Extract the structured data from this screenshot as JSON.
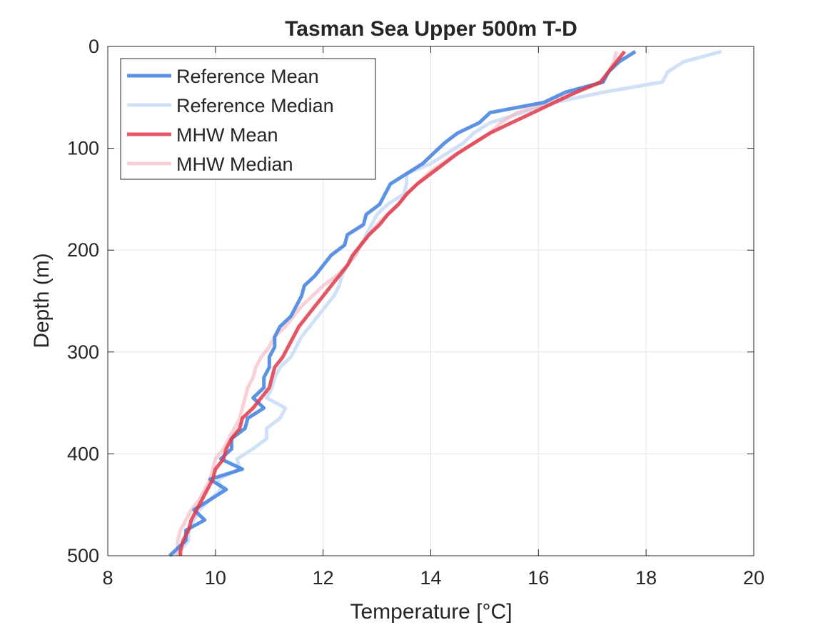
{
  "chart_data": {
    "type": "line",
    "title": "Tasman Sea Upper 500m T-D",
    "xlabel": "Temperature [°C]",
    "ylabel": "Depth (m)",
    "xlim": [
      8,
      20
    ],
    "ylim": [
      0,
      500
    ],
    "y_reversed": true,
    "grid": true,
    "legend_position": "top-left",
    "x_ticks": [
      "8",
      "10",
      "12",
      "14",
      "16",
      "18",
      "20"
    ],
    "y_ticks": [
      "0",
      "100",
      "200",
      "300",
      "400",
      "500"
    ],
    "series": [
      {
        "name": "Reference Mean",
        "color": "#4a86e0",
        "opacity": 0.9,
        "points": [
          [
            17.8,
            5
          ],
          [
            17.5,
            15
          ],
          [
            17.3,
            25
          ],
          [
            17.2,
            35
          ],
          [
            16.5,
            45
          ],
          [
            16.1,
            55
          ],
          [
            15.1,
            65
          ],
          [
            14.9,
            75
          ],
          [
            14.5,
            85
          ],
          [
            14.25,
            95
          ],
          [
            14.05,
            105
          ],
          [
            13.85,
            115
          ],
          [
            13.55,
            125
          ],
          [
            13.25,
            135
          ],
          [
            13.05,
            155
          ],
          [
            12.8,
            165
          ],
          [
            12.75,
            175
          ],
          [
            12.45,
            185
          ],
          [
            12.4,
            195
          ],
          [
            12.15,
            205
          ],
          [
            12.0,
            215
          ],
          [
            11.85,
            225
          ],
          [
            11.65,
            235
          ],
          [
            11.6,
            245
          ],
          [
            11.5,
            255
          ],
          [
            11.4,
            265
          ],
          [
            11.2,
            275
          ],
          [
            11.1,
            285
          ],
          [
            11.1,
            295
          ],
          [
            11.0,
            305
          ],
          [
            11.0,
            315
          ],
          [
            10.9,
            325
          ],
          [
            10.9,
            335
          ],
          [
            10.7,
            345
          ],
          [
            10.9,
            355
          ],
          [
            10.6,
            365
          ],
          [
            10.55,
            375
          ],
          [
            10.3,
            385
          ],
          [
            10.3,
            395
          ],
          [
            10.1,
            405
          ],
          [
            10.5,
            415
          ],
          [
            9.9,
            425
          ],
          [
            10.2,
            435
          ],
          [
            9.9,
            445
          ],
          [
            9.6,
            455
          ],
          [
            9.8,
            465
          ],
          [
            9.45,
            475
          ],
          [
            9.45,
            485
          ],
          [
            9.25,
            495
          ],
          [
            9.15,
            500
          ]
        ]
      },
      {
        "name": "Reference Median",
        "color": "#c8dcf6",
        "opacity": 0.85,
        "points": [
          [
            19.4,
            5
          ],
          [
            18.7,
            15
          ],
          [
            18.4,
            25
          ],
          [
            18.3,
            35
          ],
          [
            17.2,
            45
          ],
          [
            16.3,
            55
          ],
          [
            15.7,
            65
          ],
          [
            15.1,
            75
          ],
          [
            14.8,
            85
          ],
          [
            14.6,
            95
          ],
          [
            14.3,
            105
          ],
          [
            14.0,
            115
          ],
          [
            13.55,
            125
          ],
          [
            13.55,
            135
          ],
          [
            13.5,
            145
          ],
          [
            13.2,
            155
          ],
          [
            13.0,
            165
          ],
          [
            12.9,
            175
          ],
          [
            12.8,
            185
          ],
          [
            12.7,
            195
          ],
          [
            12.6,
            205
          ],
          [
            12.45,
            215
          ],
          [
            12.35,
            225
          ],
          [
            12.3,
            235
          ],
          [
            12.2,
            245
          ],
          [
            12.05,
            255
          ],
          [
            11.9,
            265
          ],
          [
            11.75,
            275
          ],
          [
            11.6,
            285
          ],
          [
            11.5,
            295
          ],
          [
            11.4,
            305
          ],
          [
            11.2,
            315
          ],
          [
            11.1,
            325
          ],
          [
            11.05,
            335
          ],
          [
            10.95,
            345
          ],
          [
            11.3,
            355
          ],
          [
            11.2,
            365
          ],
          [
            10.95,
            375
          ],
          [
            10.95,
            385
          ],
          [
            10.7,
            395
          ],
          [
            10.4,
            405
          ],
          [
            10.45,
            415
          ],
          [
            10.05,
            425
          ],
          [
            10.1,
            435
          ],
          [
            9.9,
            445
          ],
          [
            9.7,
            455
          ],
          [
            9.6,
            465
          ],
          [
            9.5,
            475
          ],
          [
            9.5,
            485
          ],
          [
            9.35,
            495
          ],
          [
            9.3,
            500
          ]
        ]
      },
      {
        "name": "MHW Mean",
        "color": "#e13a4a",
        "opacity": 0.85,
        "points": [
          [
            17.6,
            5
          ],
          [
            17.45,
            15
          ],
          [
            17.3,
            25
          ],
          [
            17.15,
            35
          ],
          [
            16.7,
            45
          ],
          [
            16.3,
            55
          ],
          [
            15.9,
            65
          ],
          [
            15.5,
            75
          ],
          [
            15.1,
            85
          ],
          [
            14.8,
            95
          ],
          [
            14.5,
            105
          ],
          [
            14.25,
            115
          ],
          [
            14.0,
            125
          ],
          [
            13.75,
            135
          ],
          [
            13.55,
            145
          ],
          [
            13.4,
            155
          ],
          [
            13.2,
            165
          ],
          [
            13.05,
            175
          ],
          [
            12.85,
            185
          ],
          [
            12.7,
            195
          ],
          [
            12.55,
            205
          ],
          [
            12.45,
            215
          ],
          [
            12.3,
            225
          ],
          [
            12.15,
            235
          ],
          [
            12.0,
            245
          ],
          [
            11.85,
            255
          ],
          [
            11.7,
            265
          ],
          [
            11.55,
            275
          ],
          [
            11.45,
            285
          ],
          [
            11.35,
            295
          ],
          [
            11.25,
            305
          ],
          [
            11.1,
            315
          ],
          [
            11.05,
            325
          ],
          [
            11.0,
            335
          ],
          [
            10.85,
            345
          ],
          [
            10.7,
            355
          ],
          [
            10.5,
            365
          ],
          [
            10.45,
            375
          ],
          [
            10.3,
            385
          ],
          [
            10.2,
            395
          ],
          [
            10.15,
            405
          ],
          [
            10.0,
            415
          ],
          [
            9.95,
            425
          ],
          [
            9.85,
            435
          ],
          [
            9.75,
            445
          ],
          [
            9.65,
            455
          ],
          [
            9.55,
            465
          ],
          [
            9.5,
            475
          ],
          [
            9.4,
            485
          ],
          [
            9.35,
            495
          ],
          [
            9.35,
            500
          ]
        ]
      },
      {
        "name": "MHW Median",
        "color": "#f2b3bb",
        "opacity": 0.6,
        "points": [
          [
            17.45,
            5
          ],
          [
            17.4,
            15
          ],
          [
            17.3,
            25
          ],
          [
            17.2,
            35
          ],
          [
            16.7,
            45
          ],
          [
            16.2,
            55
          ],
          [
            15.6,
            65
          ],
          [
            15.3,
            75
          ],
          [
            15.1,
            85
          ],
          [
            14.8,
            95
          ],
          [
            14.5,
            105
          ],
          [
            14.2,
            115
          ],
          [
            13.95,
            125
          ],
          [
            13.75,
            135
          ],
          [
            13.55,
            145
          ],
          [
            13.4,
            155
          ],
          [
            13.2,
            165
          ],
          [
            13.0,
            175
          ],
          [
            12.85,
            185
          ],
          [
            12.7,
            195
          ],
          [
            12.6,
            205
          ],
          [
            12.45,
            215
          ],
          [
            12.25,
            225
          ],
          [
            12.0,
            235
          ],
          [
            11.8,
            245
          ],
          [
            11.6,
            255
          ],
          [
            11.45,
            265
          ],
          [
            11.3,
            275
          ],
          [
            11.1,
            285
          ],
          [
            11.0,
            295
          ],
          [
            10.85,
            305
          ],
          [
            10.75,
            315
          ],
          [
            10.7,
            325
          ],
          [
            10.6,
            335
          ],
          [
            10.55,
            345
          ],
          [
            10.5,
            355
          ],
          [
            10.45,
            365
          ],
          [
            10.35,
            375
          ],
          [
            10.25,
            385
          ],
          [
            10.15,
            395
          ],
          [
            10.0,
            405
          ],
          [
            9.95,
            415
          ],
          [
            9.9,
            425
          ],
          [
            9.8,
            435
          ],
          [
            9.7,
            445
          ],
          [
            9.55,
            455
          ],
          [
            9.45,
            465
          ],
          [
            9.35,
            475
          ],
          [
            9.3,
            485
          ],
          [
            9.3,
            495
          ],
          [
            9.25,
            500
          ]
        ]
      }
    ]
  }
}
